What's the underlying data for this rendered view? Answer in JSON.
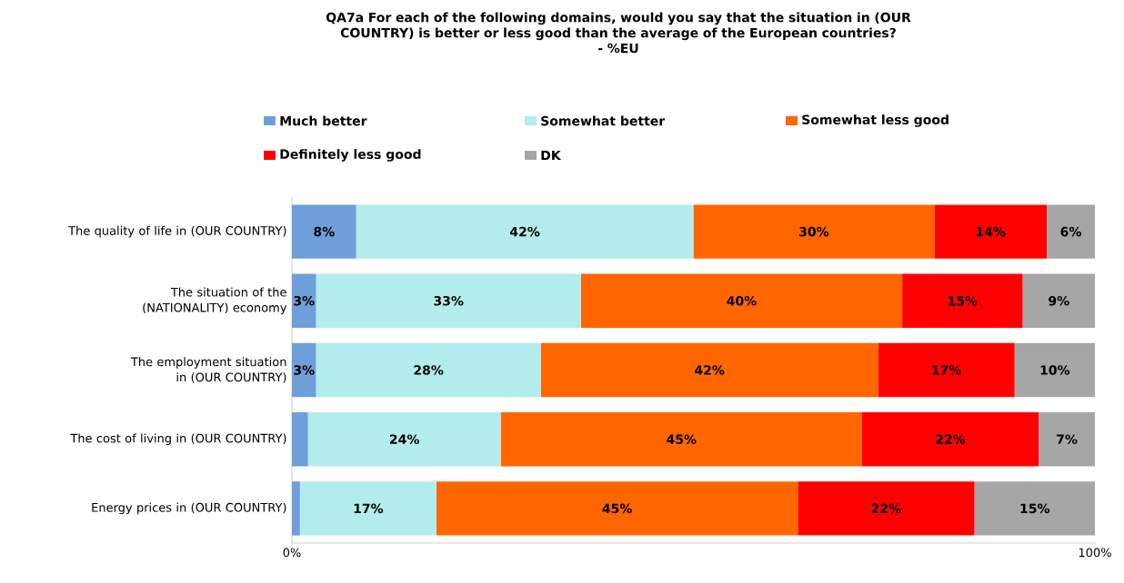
{
  "chart_data": {
    "type": "bar",
    "orientation": "horizontal",
    "stacked": true,
    "title": "QA7a For each of the following domains, would you say that the situation in (OUR COUNTRY) is better or less good than the average of the European countries?",
    "subtitle": "- %EU",
    "categories": [
      "The quality of life in (OUR COUNTRY)",
      "The situation of the (NATIONALITY) economy",
      "The employment situation in (OUR COUNTRY)",
      "The cost of living in (OUR COUNTRY)",
      "Energy prices in (OUR COUNTRY)"
    ],
    "series": [
      {
        "name": "Much better",
        "color": "#6f9fd8",
        "values": [
          8,
          3,
          3,
          2,
          1
        ],
        "value_labels": [
          "8%",
          "3%",
          "3%",
          null,
          null
        ]
      },
      {
        "name": "Somewhat better",
        "color": "#b3ecec",
        "values": [
          42,
          33,
          28,
          24,
          17
        ],
        "value_labels": [
          "42%",
          "33%",
          "28%",
          "24%",
          "17%"
        ]
      },
      {
        "name": "Somewhat less good",
        "color": "#ff6600",
        "values": [
          30,
          40,
          42,
          45,
          45
        ],
        "value_labels": [
          "30%",
          "40%",
          "42%",
          "45%",
          "45%"
        ]
      },
      {
        "name": "Definitely less good",
        "color": "#ff0000",
        "values": [
          14,
          15,
          17,
          22,
          22
        ],
        "value_labels": [
          "14%",
          "15%",
          "17%",
          "22%",
          "22%"
        ]
      },
      {
        "name": "DK",
        "color": "#a6a6a6",
        "values": [
          6,
          9,
          10,
          7,
          15
        ],
        "value_labels": [
          "6%",
          "9%",
          "10%",
          "7%",
          "15%"
        ]
      }
    ],
    "xlim": [
      0,
      100
    ],
    "xticks": [
      {
        "value": 0,
        "label": "0%"
      },
      {
        "value": 100,
        "label": "100%"
      }
    ],
    "legend": "top"
  }
}
